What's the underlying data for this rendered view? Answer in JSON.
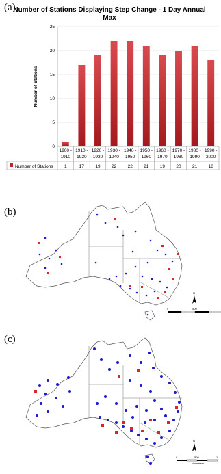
{
  "panels": {
    "a": "(a)",
    "b": "(b)",
    "c": "(c)"
  },
  "chart_data": {
    "type": "bar",
    "title_line1": "Number of Stations Displaying Step Change - 1 Day Annual",
    "title_line2": "Max",
    "ylabel": "Number of Stations",
    "ylim": [
      0,
      25
    ],
    "yticks": [
      0,
      5,
      10,
      15,
      20,
      25
    ],
    "grid": true,
    "bar_color": "#c0262c",
    "categories": [
      [
        "1900 -",
        "1910"
      ],
      [
        "1910 -",
        "1920"
      ],
      [
        "1920 -",
        "1930"
      ],
      [
        "1930 -",
        "1940"
      ],
      [
        "1940 -",
        "1950"
      ],
      [
        "1950 -",
        "1960"
      ],
      [
        "1960 -",
        "1970"
      ],
      [
        "1970 -",
        "1980"
      ],
      [
        "1980 -",
        "1990"
      ],
      [
        "1990 -",
        "2000"
      ]
    ],
    "series": [
      {
        "name": "Number of Stations",
        "values": [
          1,
          17,
          19,
          22,
          22,
          21,
          19,
          20,
          21,
          18
        ]
      }
    ]
  },
  "maps": {
    "b": {
      "north_label": "N",
      "scale_labels": [
        "0",
        "500",
        "1"
      ]
    },
    "c": {
      "north_label": "N",
      "scale_labels": [
        "0",
        "500",
        "1"
      ],
      "scale_unit": "kilometers"
    },
    "marker_colors": {
      "station": "#1c1ccf",
      "step_change": "#d8262c"
    }
  }
}
